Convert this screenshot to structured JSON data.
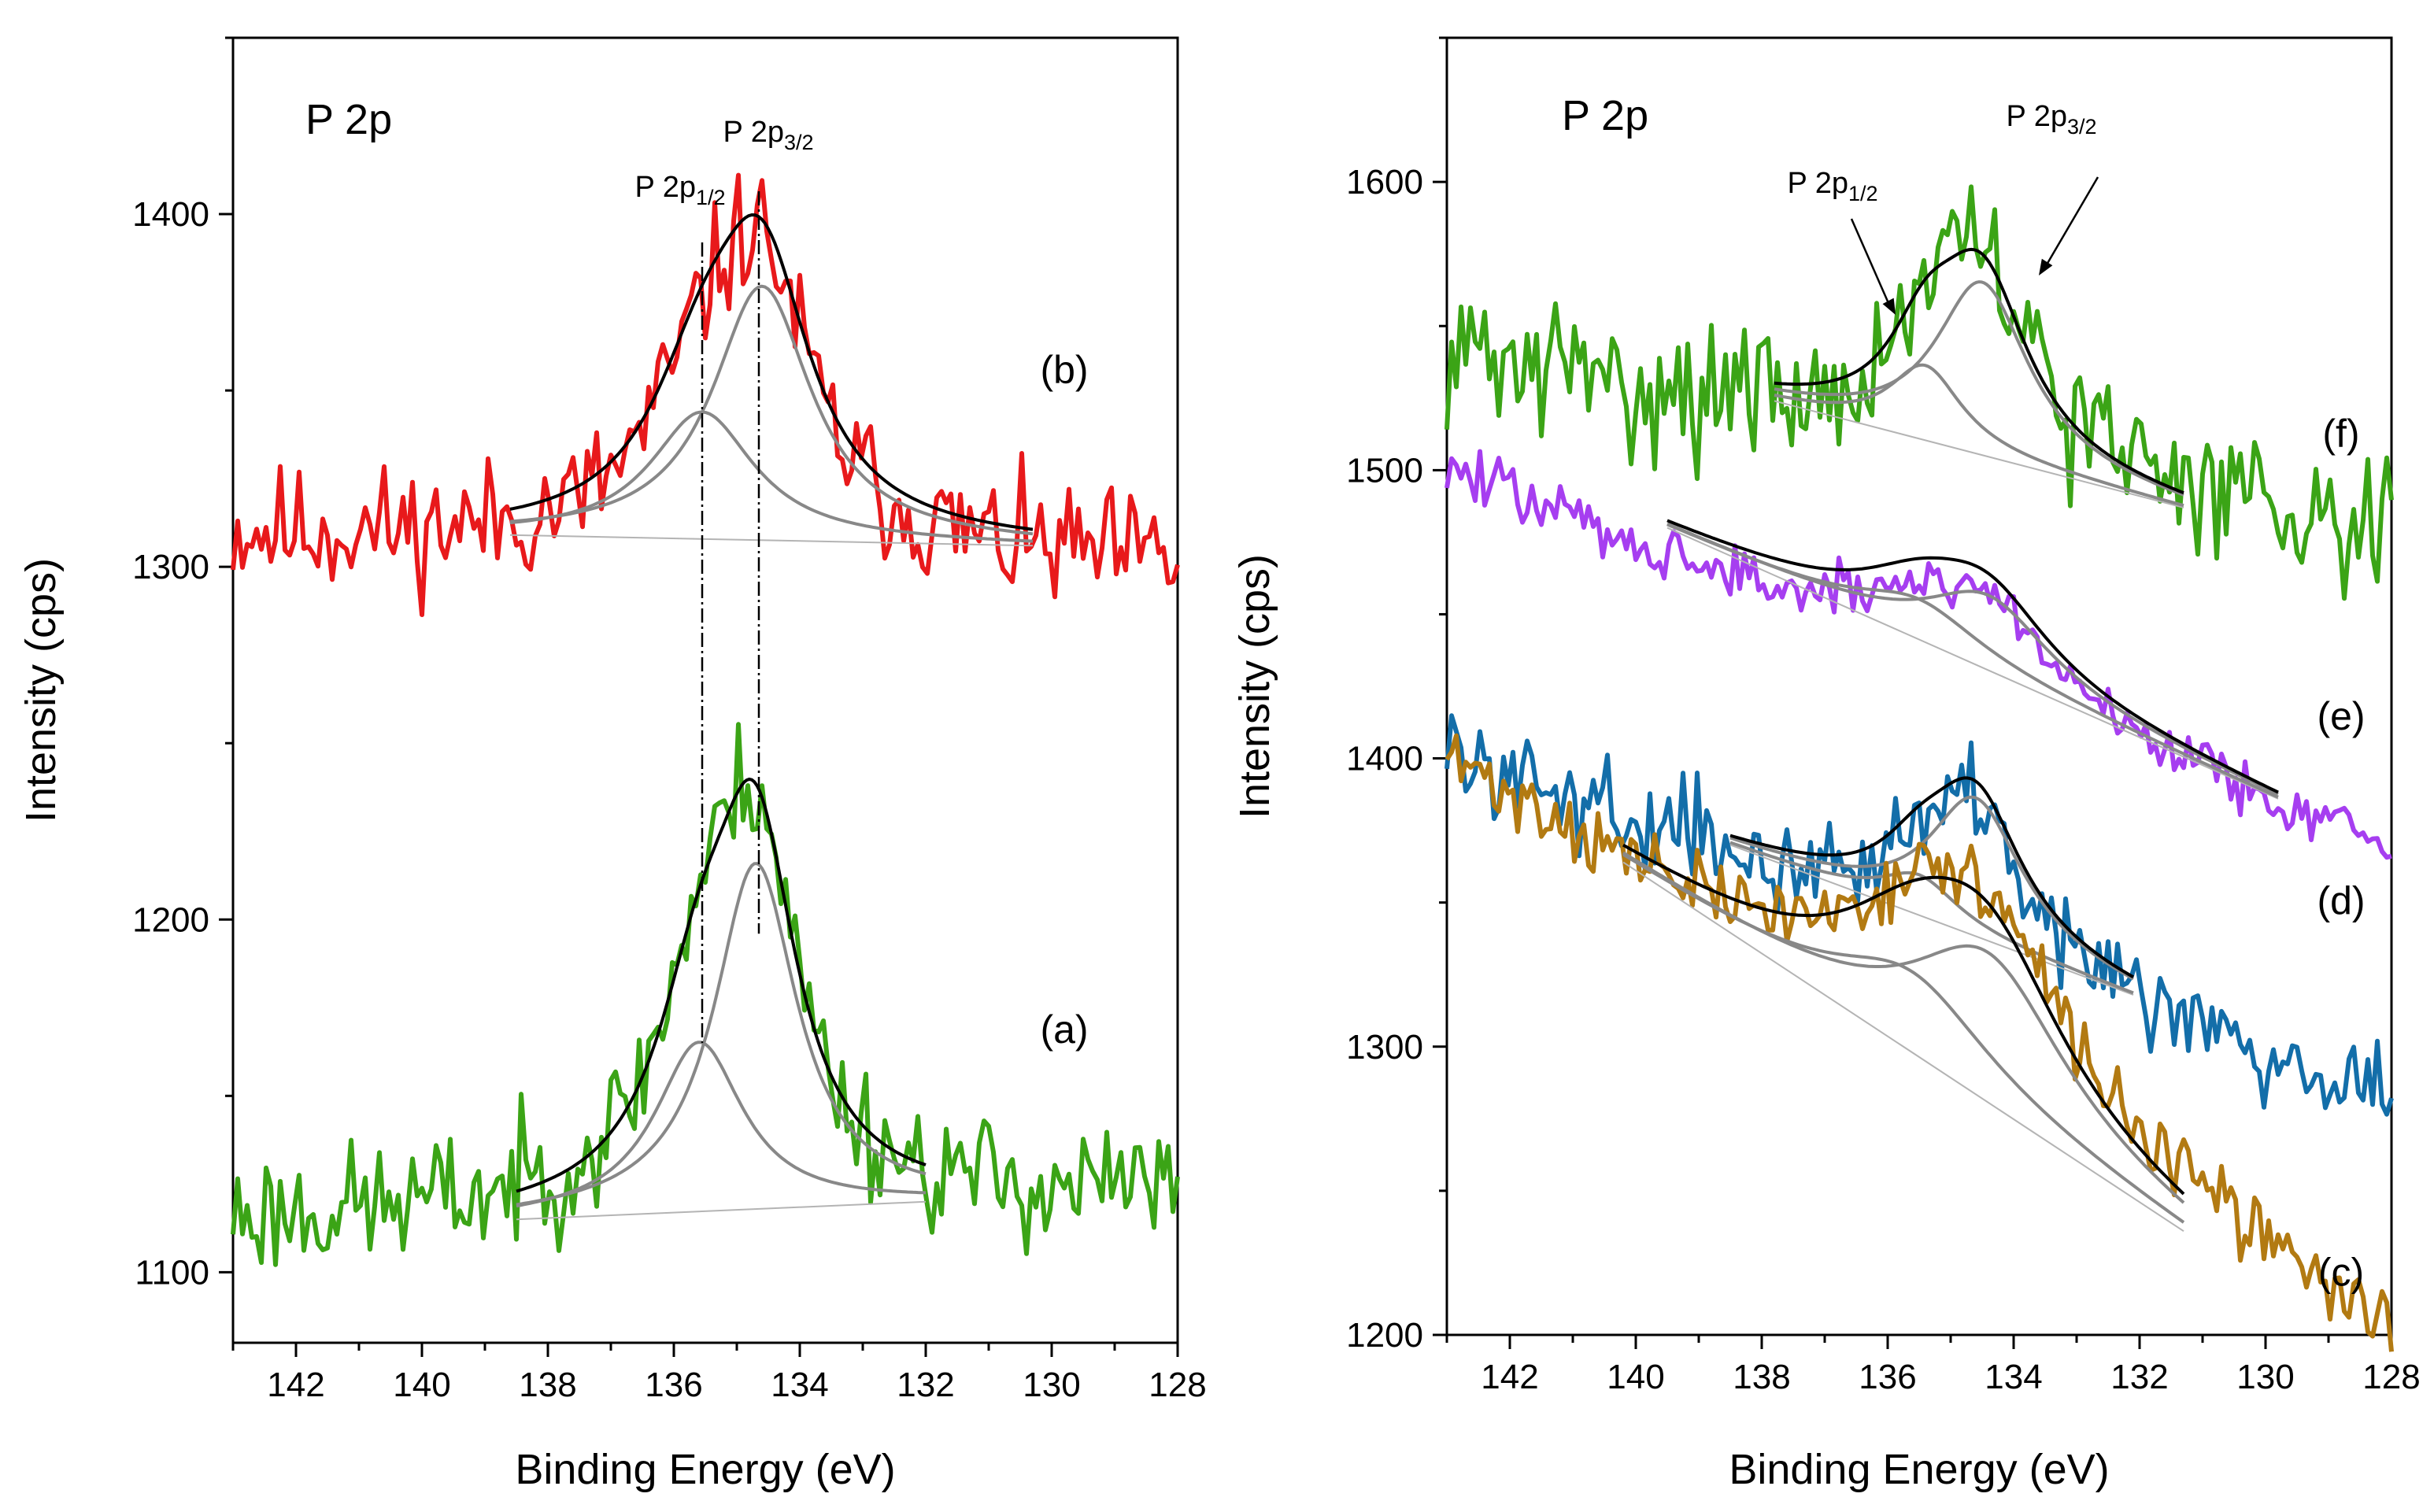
{
  "chart_data": [
    {
      "type": "line",
      "title": "P 2p",
      "xlabel": "Binding Energy (eV)",
      "ylabel": "Intensity (cps)",
      "xlim": [
        143,
        128
      ],
      "ylim": [
        1080,
        1450
      ],
      "x_ticks": [
        142,
        140,
        138,
        136,
        134,
        132,
        130,
        128
      ],
      "y_ticks": [
        1100,
        1200,
        1300,
        1400
      ],
      "annotations": {
        "p12": {
          "main": "P 2p",
          "sub": "1/2",
          "x": 135.55
        },
        "p32": {
          "main": "P 2p",
          "sub": "3/2",
          "x": 134.65
        }
      },
      "series": [
        {
          "name": "(b)",
          "label": "(b)",
          "color": "#e8191b",
          "label_x": 129.8,
          "label_y": 1352,
          "x0": 143,
          "x1": 128,
          "n": 200,
          "base0": 1309,
          "base1": 1300,
          "noise": 9,
          "seed": 11,
          "fit": {
            "xa": 138.6,
            "xb": 130.3,
            "ya": 1309,
            "yb": 1306,
            "peaks": [
              {
                "c": 135.55,
                "a": 36,
                "w": 1.0
              },
              {
                "c": 134.6,
                "a": 72,
                "w": 0.95
              }
            ]
          }
        },
        {
          "name": "(a)",
          "label": "(a)",
          "color": "#3ba416",
          "label_x": 129.8,
          "label_y": 1165,
          "x0": 143,
          "x1": 128,
          "n": 200,
          "base0": 1115,
          "base1": 1122,
          "noise": 9,
          "seed": 23,
          "fit": {
            "xa": 138.5,
            "xb": 132.0,
            "ya": 1115,
            "yb": 1120,
            "peaks": [
              {
                "c": 135.6,
                "a": 48,
                "w": 0.85
              },
              {
                "c": 134.7,
                "a": 98,
                "w": 0.8
              }
            ]
          }
        }
      ]
    },
    {
      "type": "line",
      "title": "P 2p",
      "xlabel": "Binding Energy (eV)",
      "ylabel": "Intensity (cps)",
      "xlim": [
        143,
        128
      ],
      "ylim": [
        1200,
        1650
      ],
      "x_ticks": [
        142,
        140,
        138,
        136,
        134,
        132,
        130,
        128
      ],
      "y_ticks": [
        1200,
        1300,
        1400,
        1500,
        1600
      ],
      "annotations": {
        "p12": {
          "main": "P 2p",
          "sub": "1/2",
          "x": 136.5
        },
        "p32": {
          "main": "P 2p",
          "sub": "3/2",
          "x": 133.9
        }
      },
      "series": [
        {
          "name": "(f)",
          "label": "(f)",
          "color": "#3ba416",
          "label_x": 128.8,
          "label_y": 1508,
          "x0": 143,
          "x1": 128,
          "n": 200,
          "base0": 1540,
          "base1": 1480,
          "noise": 12,
          "seed": 31,
          "fit": {
            "xa": 137.8,
            "xb": 131.3,
            "ya": 1524,
            "yb": 1487,
            "peaks": [
              {
                "c": 135.4,
                "a": 26,
                "w": 0.7
              },
              {
                "c": 134.5,
                "a": 60,
                "w": 0.9
              }
            ]
          }
        },
        {
          "name": "(e)",
          "label": "(e)",
          "color": "#a63ef0",
          "label_x": 128.8,
          "label_y": 1410,
          "x0": 143,
          "x1": 128,
          "n": 200,
          "base0": 1500,
          "base1": 1368,
          "noise": 5,
          "seed": 47,
          "fit": {
            "xa": 139.5,
            "xb": 129.8,
            "ya": 1480,
            "yb": 1386,
            "peaks": [
              {
                "c": 135.5,
                "a": 14,
                "w": 1.2
              },
              {
                "c": 134.4,
                "a": 26,
                "w": 1.2
              }
            ]
          }
        },
        {
          "name": "(d)",
          "label": "(d)",
          "color": "#136ea9",
          "label_x": 128.8,
          "label_y": 1346,
          "x0": 143,
          "x1": 128,
          "n": 200,
          "base0": 1402,
          "base1": 1282,
          "noise": 8,
          "seed": 59,
          "fit": {
            "xa": 138.5,
            "xb": 132.1,
            "ya": 1370,
            "yb": 1318,
            "peaks": [
              {
                "c": 135.5,
                "a": 14,
                "w": 0.75
              },
              {
                "c": 134.6,
                "a": 48,
                "w": 0.9
              }
            ]
          }
        },
        {
          "name": "(c)",
          "label": "(c)",
          "color": "#b27a12",
          "label_x": 128.8,
          "label_y": 1217,
          "x0": 143,
          "x1": 128,
          "n": 200,
          "base0": 1398,
          "base1": 1200,
          "noise": 6,
          "seed": 71,
          "fit": {
            "xa": 140.2,
            "xb": 131.3,
            "ya": 1364,
            "yb": 1236,
            "peaks": [
              {
                "c": 135.6,
                "a": 28,
                "w": 1.5
              },
              {
                "c": 134.4,
                "a": 52,
                "w": 1.5
              }
            ]
          }
        }
      ]
    }
  ]
}
